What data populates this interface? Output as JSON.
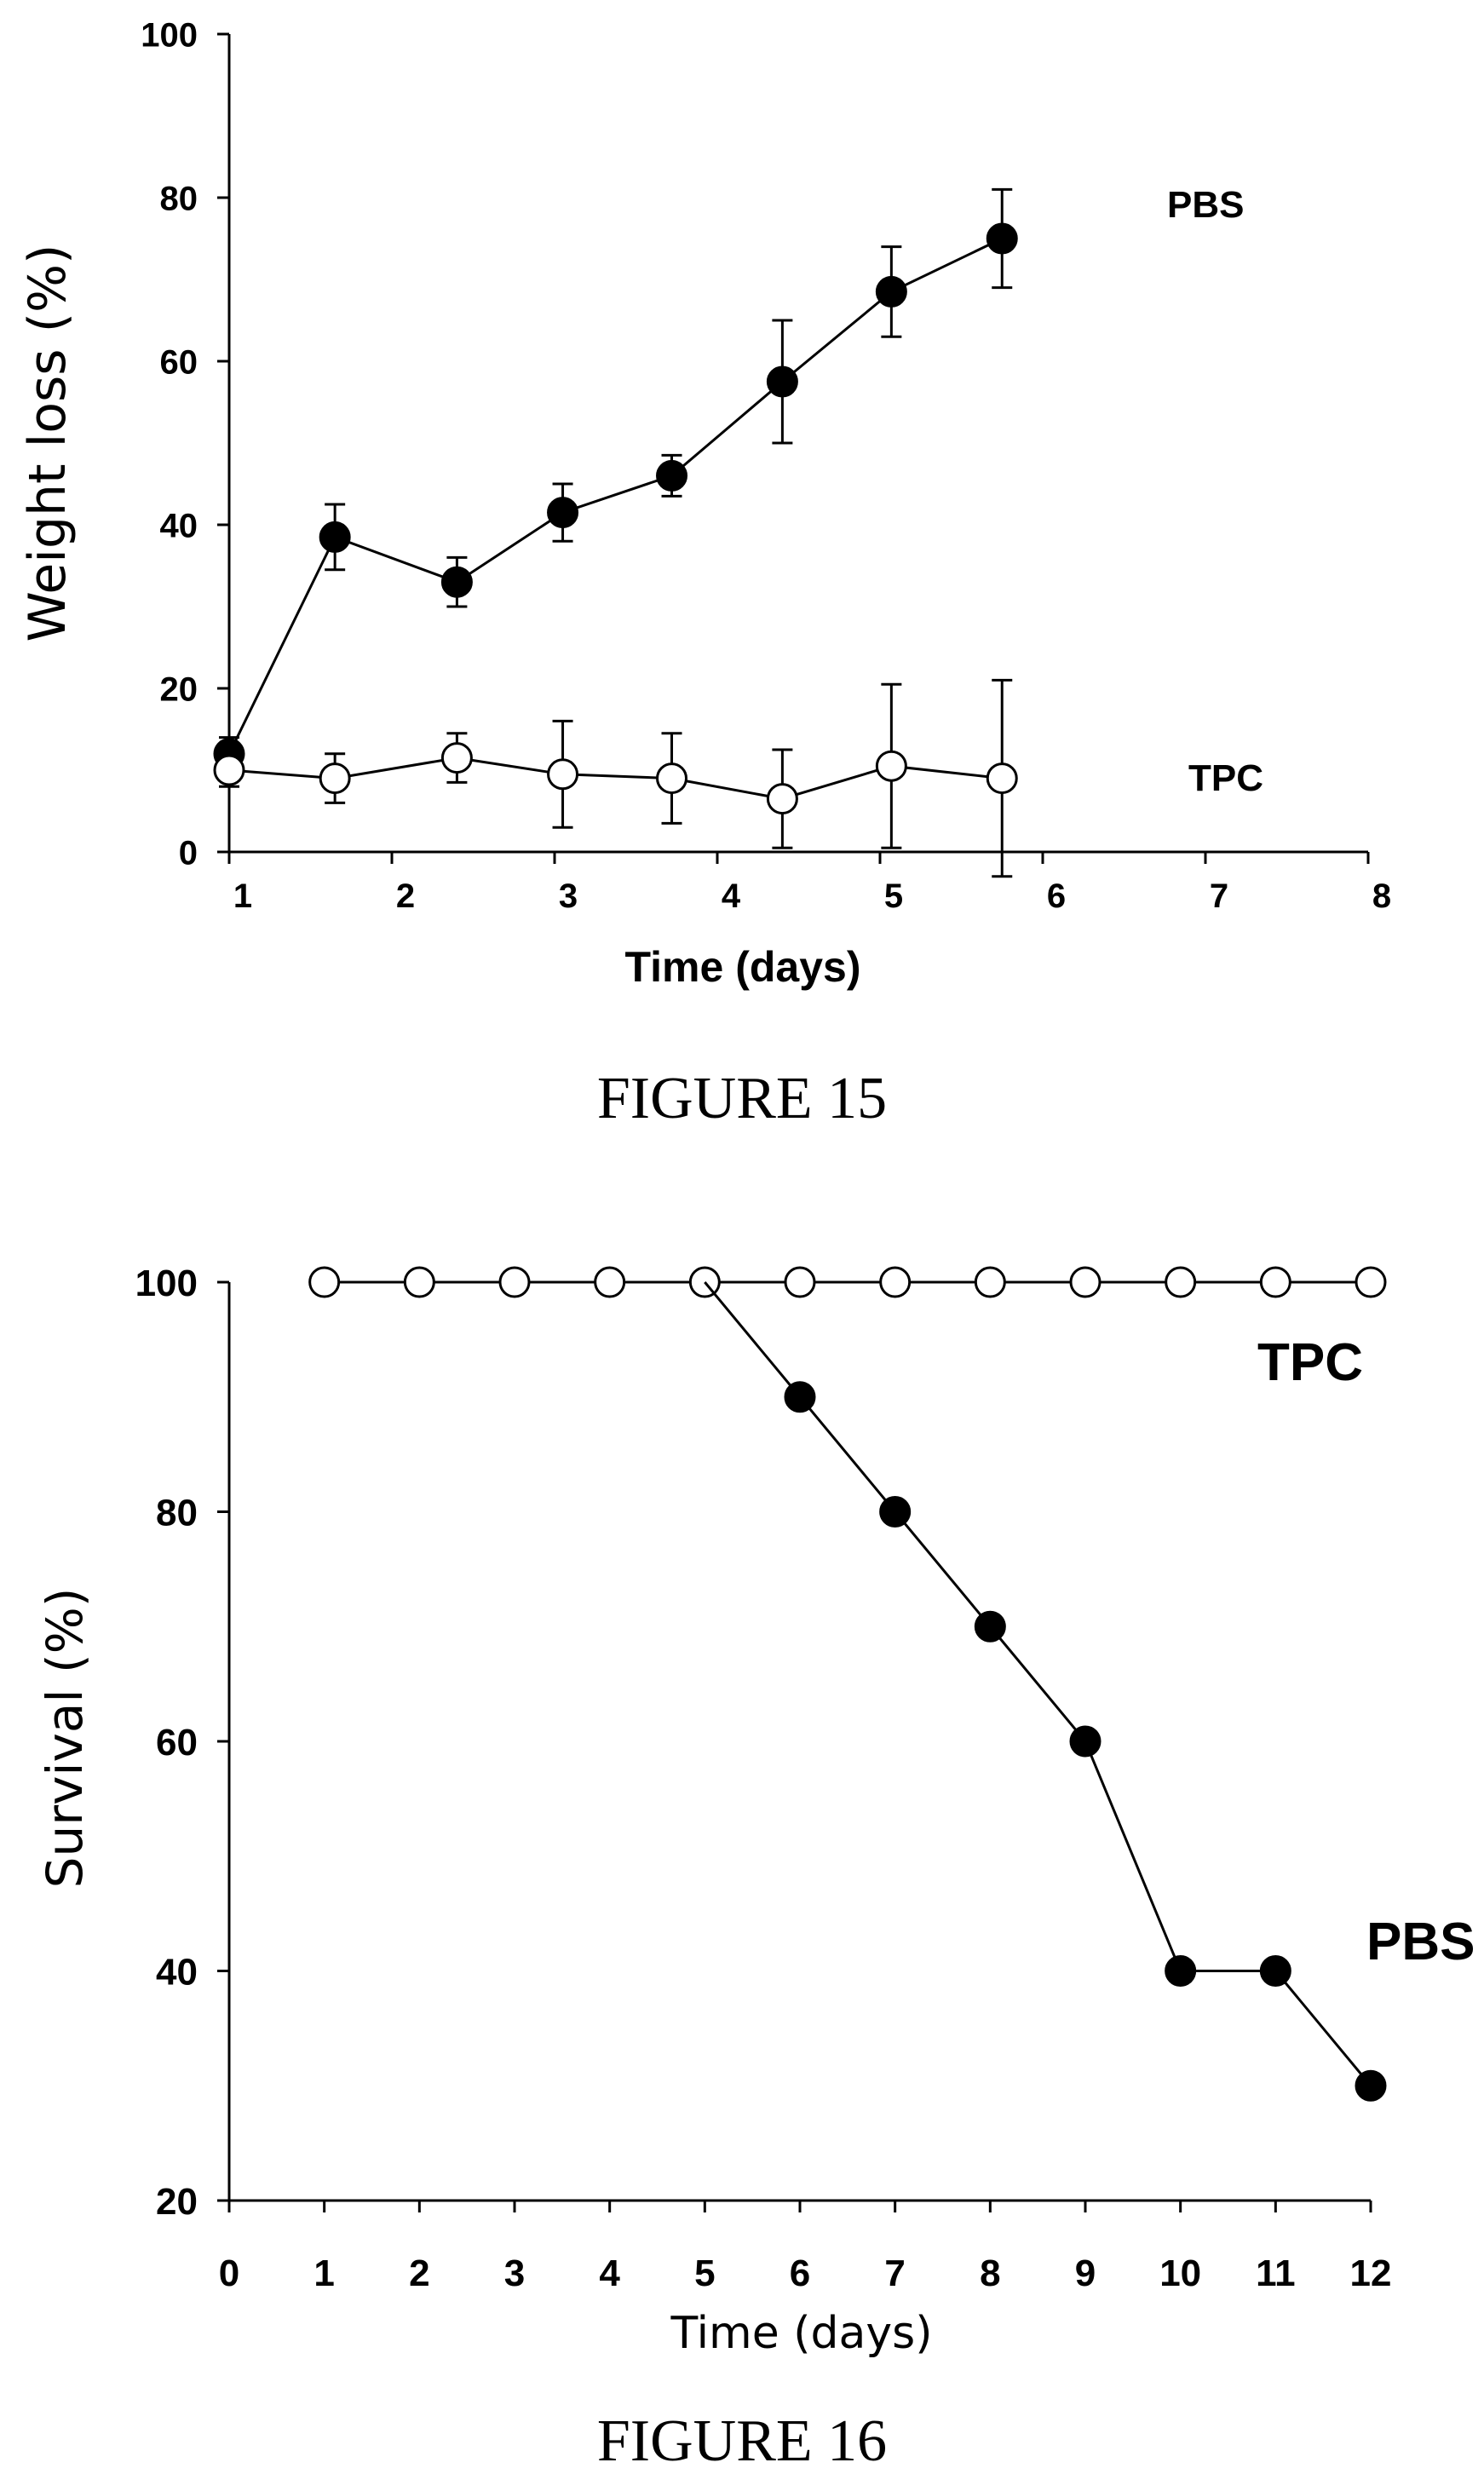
{
  "chart_data": [
    {
      "type": "line",
      "caption": "FIGURE 15",
      "xlabel": "Time (days)",
      "ylabel": "Weight loss (%)",
      "xlim": [
        1,
        8
      ],
      "ylim": [
        0,
        100
      ],
      "xticks": [
        "1",
        "2",
        "3",
        "4",
        "5",
        "6",
        "7",
        "8"
      ],
      "yticks": [
        "0",
        "20",
        "40",
        "60",
        "80",
        "100"
      ],
      "series": [
        {
          "name": "PBS",
          "marker": "filled-circle",
          "x": [
            1.0,
            1.65,
            2.4,
            3.05,
            3.72,
            4.4,
            5.07,
            5.75
          ],
          "y": [
            12,
            38.5,
            33,
            41.5,
            46,
            57.5,
            68.5,
            75
          ],
          "err": [
            2,
            4,
            3,
            3.5,
            2.5,
            7.5,
            5.5,
            6
          ]
        },
        {
          "name": "TPC",
          "marker": "open-circle",
          "x": [
            1.0,
            1.65,
            2.4,
            3.05,
            3.72,
            4.4,
            5.07,
            5.75
          ],
          "y": [
            10,
            9,
            11.5,
            9.5,
            9,
            6.5,
            10.5,
            9
          ],
          "err": [
            2,
            3,
            3,
            6.5,
            5.5,
            6,
            10,
            12
          ]
        }
      ]
    },
    {
      "type": "line",
      "caption": "FIGURE 16",
      "xlabel": "Time (days)",
      "ylabel": "Survival (%)",
      "xlim": [
        0,
        12
      ],
      "ylim": [
        20,
        100
      ],
      "xticks": [
        "0",
        "1",
        "2",
        "3",
        "4",
        "5",
        "6",
        "7",
        "8",
        "9",
        "10",
        "11",
        "12"
      ],
      "yticks": [
        "20",
        "40",
        "60",
        "80",
        "100"
      ],
      "series": [
        {
          "name": "TPC",
          "marker": "open-circle",
          "x": [
            1,
            2,
            3,
            4,
            5,
            6,
            7,
            8,
            9,
            10,
            11,
            12
          ],
          "y": [
            100,
            100,
            100,
            100,
            100,
            100,
            100,
            100,
            100,
            100,
            100,
            100
          ]
        },
        {
          "name": "PBS",
          "marker": "filled-circle",
          "x": [
            5,
            6,
            7,
            8,
            9,
            10,
            11,
            12
          ],
          "y": [
            100,
            90,
            80,
            70,
            60,
            40,
            40,
            30
          ],
          "hidden_points": [
            0
          ]
        }
      ]
    }
  ]
}
